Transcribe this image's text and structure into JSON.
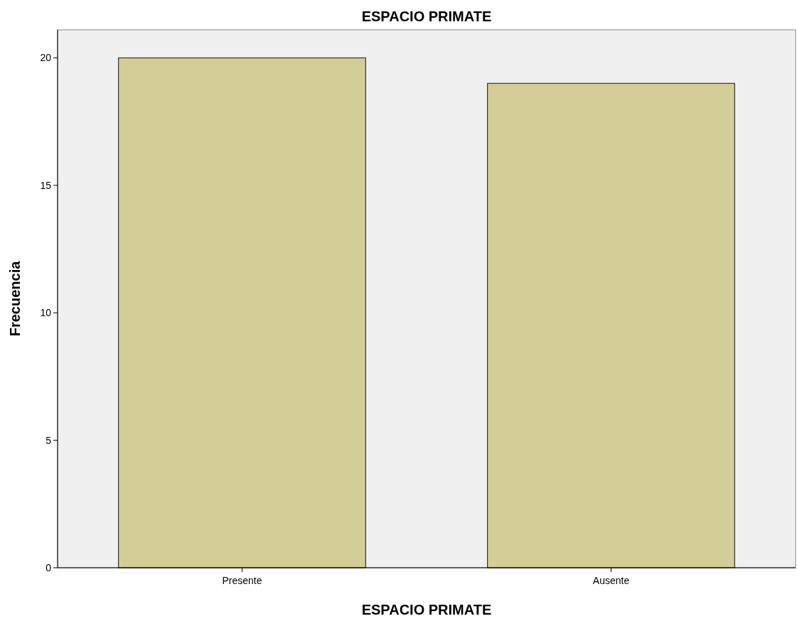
{
  "chart_data": {
    "type": "bar",
    "title": "ESPACIO PRIMATE",
    "xlabel": "ESPACIO PRIMATE",
    "ylabel": "Frecuencia",
    "categories": [
      "Presente",
      "Ausente"
    ],
    "values": [
      20,
      19
    ],
    "color": "#d3ce97",
    "ylim": [
      0,
      21.1
    ],
    "yticks": [
      0,
      5,
      10,
      15,
      20
    ],
    "grid": false
  }
}
